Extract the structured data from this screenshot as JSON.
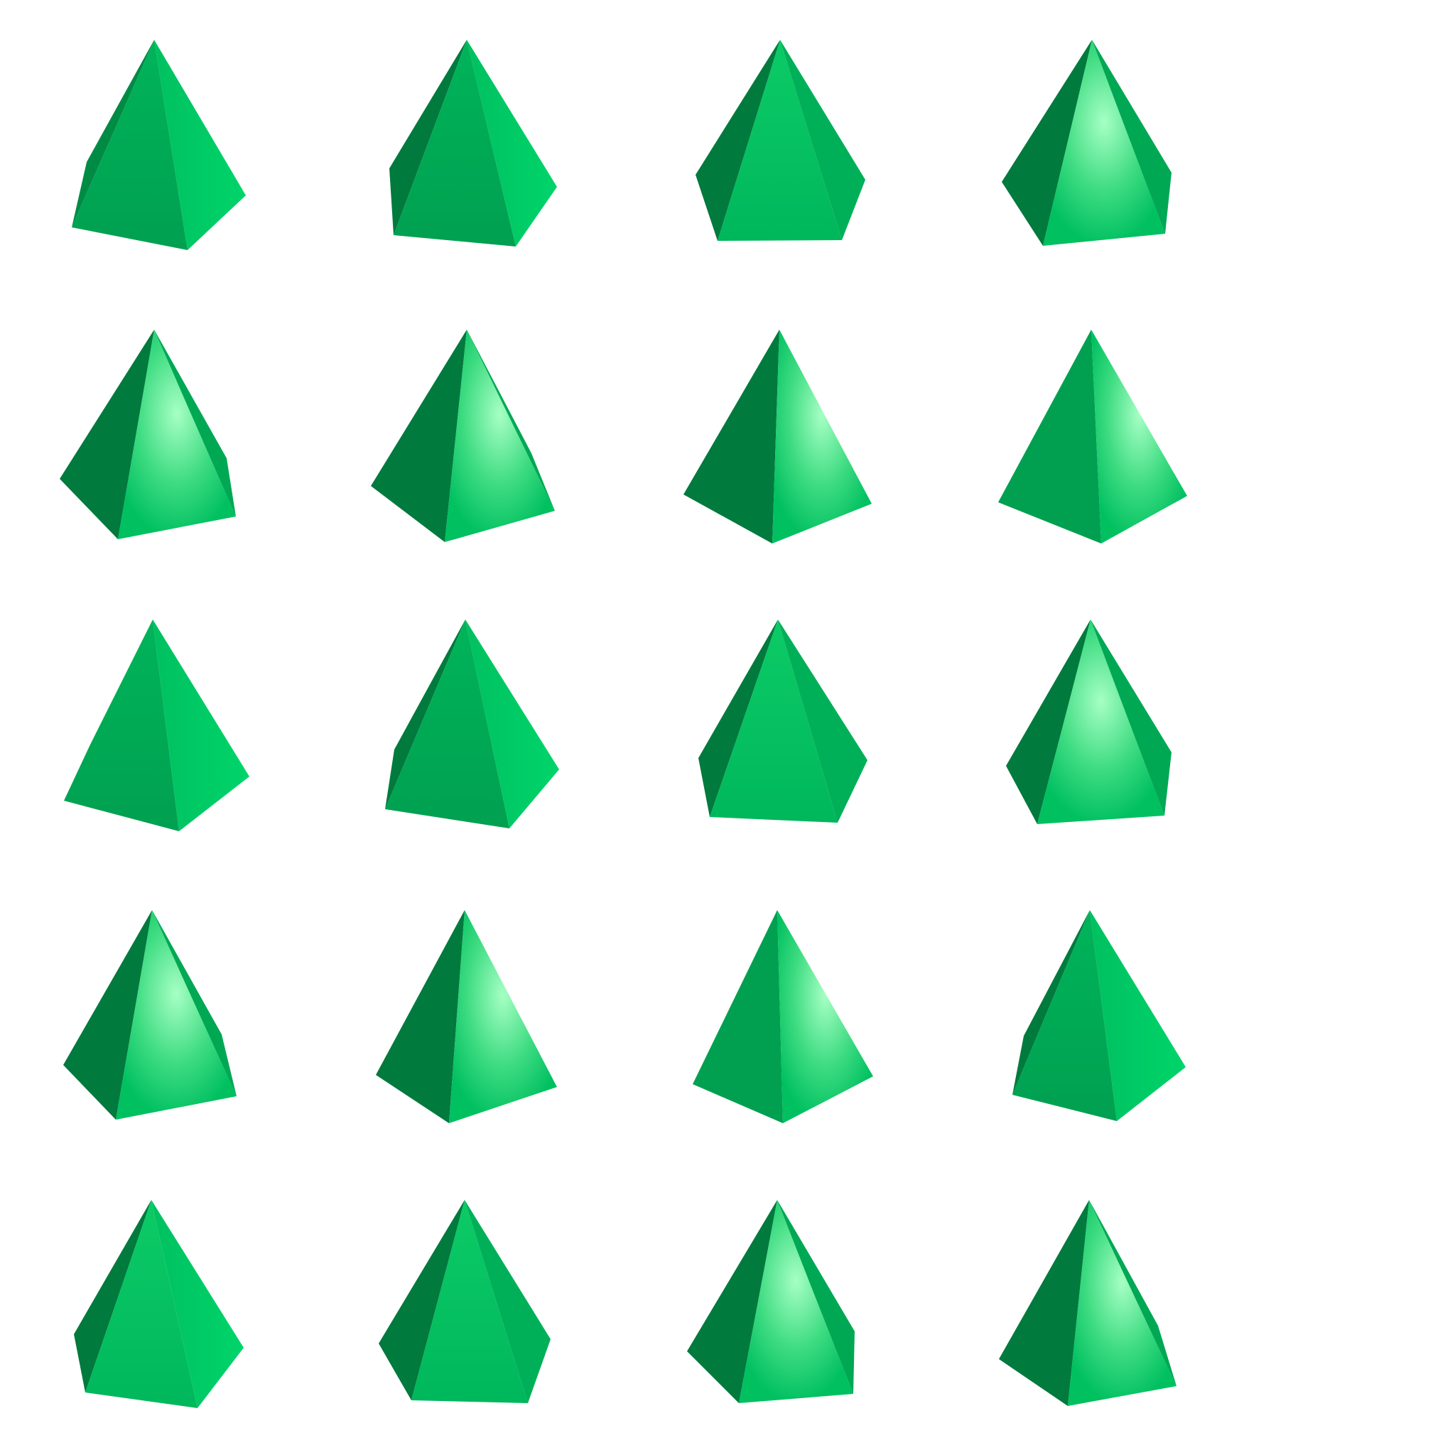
{
  "scene": {
    "background": "#ffffff",
    "object_kind": "pyramid",
    "rows": 5,
    "columns": 4,
    "palette": {
      "darkest": "#007a3d",
      "dark": "#008b45",
      "base": "#00a854",
      "mid": "#00c060",
      "bright": "#00d068",
      "highlight": "#a6ffc4"
    }
  }
}
